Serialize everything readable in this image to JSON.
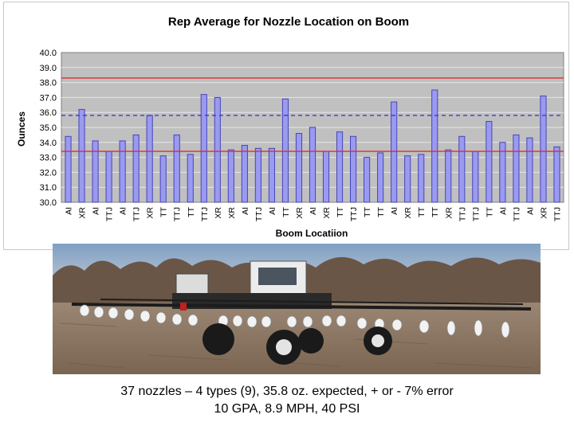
{
  "chart_data": {
    "type": "bar",
    "title": "Rep Average for Nozzle Location on Boom",
    "xlabel": "Boom Locatiion",
    "ylabel": "Ounces",
    "ylim": [
      30.0,
      40.0
    ],
    "yticks": [
      "30.0",
      "31.0",
      "32.0",
      "33.0",
      "34.0",
      "35.0",
      "36.0",
      "37.0",
      "38.0",
      "39.0",
      "40.0"
    ],
    "grid": true,
    "categories": [
      "AI",
      "XR",
      "AI",
      "TTJ",
      "AI",
      "TTJ",
      "XR",
      "TT",
      "TTJ",
      "TT",
      "TTJ",
      "XR",
      "XR",
      "AI",
      "TTJ",
      "AI",
      "TT",
      "XR",
      "AI",
      "XR",
      "TT",
      "TTJ",
      "TT",
      "TT",
      "AI",
      "XR",
      "TT",
      "TT",
      "XR",
      "TTJ",
      "TTJ",
      "TT",
      "AI",
      "TTJ",
      "AI",
      "XR",
      "TTJ"
    ],
    "values": [
      34.4,
      36.2,
      34.1,
      33.4,
      34.1,
      34.5,
      35.8,
      33.1,
      34.5,
      33.2,
      37.2,
      37.0,
      33.5,
      33.8,
      33.6,
      33.6,
      36.9,
      34.6,
      35.0,
      33.4,
      34.7,
      34.4,
      33.0,
      33.3,
      36.7,
      33.1,
      33.2,
      37.5,
      33.5,
      34.4,
      33.4,
      35.4,
      34.0,
      34.5,
      34.3,
      37.1,
      33.7
    ],
    "reference_lines": [
      {
        "value": 38.3,
        "style": "solid",
        "color": "#d9302e"
      },
      {
        "value": 35.8,
        "style": "dashed",
        "color": "#3a3ad0"
      },
      {
        "value": 33.4,
        "style": "solid",
        "color": "#d9302e"
      }
    ],
    "colors": {
      "bar_fill": "#9a9af0",
      "bar_stroke": "#4646b8",
      "plot_bg": "#c0c0c0",
      "grid": "#e6e6e6"
    }
  },
  "caption": {
    "line1": "37 nozzles – 4 types (9), 35.8 oz. expected, + or - 7% error",
    "line2": "10 GPA, 8.9 MPH, 40 PSI"
  },
  "photo": {
    "subject": "sprayer-with-boom-nozzles-in-field",
    "colors": {
      "sky": "#9cb0c8",
      "trees": "#6e5a4a",
      "soil": "#8a7560",
      "boom": "#222222",
      "cab": "#e8e8e8",
      "tank": "#d8d8d8"
    }
  }
}
